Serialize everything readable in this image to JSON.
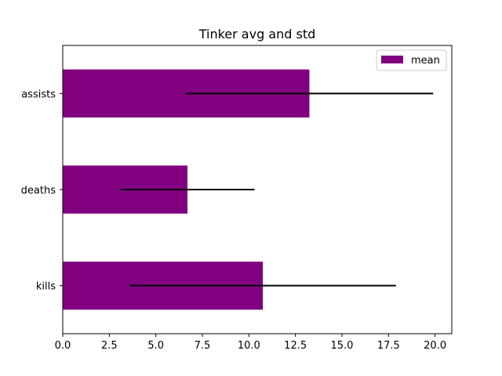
{
  "chart_data": {
    "type": "bar",
    "orientation": "horizontal",
    "title": "Tinker avg and std",
    "xlabel": "",
    "ylabel": "",
    "categories": [
      "kills",
      "deaths",
      "assists"
    ],
    "series": [
      {
        "name": "mean",
        "values": [
          10.75,
          6.7,
          13.25
        ],
        "error": [
          7.15,
          3.6,
          6.65
        ]
      }
    ],
    "xlim": [
      0,
      20.9
    ],
    "xticks": [
      "0.0",
      "2.5",
      "5.0",
      "7.5",
      "10.0",
      "12.5",
      "15.0",
      "17.5",
      "20.0"
    ],
    "grid": false,
    "legend_position": "top-right",
    "bar_color": "#800080",
    "error_color": "#000000"
  }
}
